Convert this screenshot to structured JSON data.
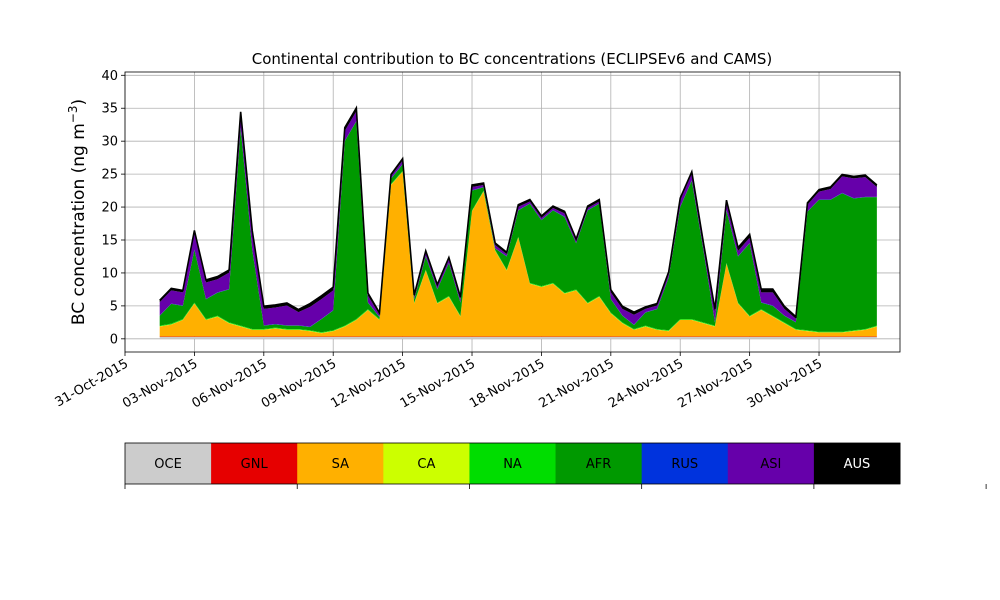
{
  "chart_data": {
    "type": "area",
    "title": "Continental contribution to BC concentrations (ECLIPSEv6 and CAMS)",
    "ylabel_text": "BC concentration (ng m",
    "ylabel_sup": "−3",
    "ylabel_close": ")",
    "xlabel": "",
    "x_start": "2015-11-01T12:00",
    "x_step_hours": 12,
    "xlim": [
      "2015-10-31T00:00",
      "2015-12-03T12:00"
    ],
    "ylim": [
      -2,
      40.5
    ],
    "yticks": [
      0,
      5,
      10,
      15,
      20,
      25,
      30,
      35,
      40
    ],
    "xticks": [
      "31-Oct-2015",
      "03-Nov-2015",
      "06-Nov-2015",
      "09-Nov-2015",
      "12-Nov-2015",
      "15-Nov-2015",
      "18-Nov-2015",
      "21-Nov-2015",
      "24-Nov-2015",
      "27-Nov-2015",
      "30-Nov-2015"
    ],
    "xtick_dates": [
      "2015-10-31",
      "2015-11-03",
      "2015-11-06",
      "2015-11-09",
      "2015-11-12",
      "2015-11-15",
      "2015-11-18",
      "2015-11-21",
      "2015-11-24",
      "2015-11-27",
      "2015-11-30"
    ],
    "grid": true,
    "stacked": true,
    "legend_position": "below-plot (colorbar)",
    "series": [
      {
        "name": "OCE",
        "color": "#cccccc",
        "values": [
          0.3,
          0.3,
          0.3,
          0.3,
          0.3,
          0.3,
          0.3,
          0.3,
          0.3,
          0.3,
          0.3,
          0.3,
          0.3,
          0.3,
          0.3,
          0.3,
          0.3,
          0.3,
          0.3,
          0.3,
          0.3,
          0.3,
          0.3,
          0.3,
          0.3,
          0.3,
          0.3,
          0.3,
          0.3,
          0.3,
          0.3,
          0.3,
          0.3,
          0.3,
          0.3,
          0.3,
          0.3,
          0.3,
          0.3,
          0.3,
          0.3,
          0.3,
          0.3,
          0.3,
          0.3,
          0.3,
          0.3,
          0.3,
          0.3,
          0.3,
          0.3,
          0.3,
          0.3,
          0.3,
          0.3,
          0.3,
          0.3,
          0.3,
          0.3,
          0.3,
          0.3,
          0.3,
          0.3
        ]
      },
      {
        "name": "GNL",
        "color": "#e60000",
        "values": [
          0.05,
          0.05,
          0.05,
          0.05,
          0.05,
          0.05,
          0.05,
          0.05,
          0.05,
          0.05,
          0.05,
          0.05,
          0.05,
          0.05,
          0.05,
          0.05,
          0.05,
          0.05,
          0.05,
          0.05,
          0.05,
          0.05,
          0.05,
          0.05,
          0.05,
          0.05,
          0.05,
          0.05,
          0.05,
          0.05,
          0.05,
          0.05,
          0.05,
          0.05,
          0.05,
          0.05,
          0.05,
          0.05,
          0.05,
          0.05,
          0.05,
          0.05,
          0.05,
          0.05,
          0.05,
          0.05,
          0.05,
          0.05,
          0.05,
          0.05,
          0.05,
          0.05,
          0.05,
          0.05,
          0.05,
          0.05,
          0.05,
          0.05,
          0.05,
          0.05,
          0.05,
          0.05,
          0.05
        ]
      },
      {
        "name": "SA",
        "color": "#ffb000",
        "values": [
          1.5,
          1.8,
          2.5,
          5.0,
          2.5,
          3.0,
          2.0,
          1.5,
          1.0,
          1.0,
          1.2,
          1.0,
          1.0,
          0.8,
          0.5,
          0.8,
          1.5,
          2.5,
          4.0,
          2.5,
          23.0,
          25.0,
          5.0,
          10.0,
          5.0,
          6.0,
          3.0,
          19.0,
          22.0,
          13.0,
          10.0,
          15.0,
          8.0,
          7.5,
          8.0,
          6.5,
          7.0,
          5.0,
          6.0,
          3.5,
          2.0,
          1.0,
          1.5,
          1.0,
          0.8,
          2.5,
          2.5,
          2.0,
          1.5,
          11.0,
          5.0,
          3.0,
          4.0,
          3.0,
          2.0,
          1.0,
          0.8,
          0.6,
          0.6,
          0.6,
          0.8,
          1.0,
          1.5
        ]
      },
      {
        "name": "CA",
        "color": "#ccff00",
        "values": [
          0.05,
          0.05,
          0.05,
          0.05,
          0.05,
          0.05,
          0.05,
          0.05,
          0.05,
          0.05,
          0.05,
          0.05,
          0.05,
          0.05,
          0.05,
          0.05,
          0.05,
          0.05,
          0.05,
          0.05,
          0.05,
          0.05,
          0.05,
          0.05,
          0.05,
          0.05,
          0.05,
          0.05,
          0.05,
          0.05,
          0.05,
          0.05,
          0.05,
          0.05,
          0.05,
          0.05,
          0.05,
          0.05,
          0.05,
          0.05,
          0.05,
          0.05,
          0.05,
          0.05,
          0.05,
          0.05,
          0.05,
          0.05,
          0.05,
          0.05,
          0.05,
          0.05,
          0.05,
          0.05,
          0.05,
          0.05,
          0.05,
          0.05,
          0.05,
          0.05,
          0.05,
          0.05,
          0.05
        ]
      },
      {
        "name": "NA",
        "color": "#00dd00",
        "values": [
          0.1,
          0.1,
          0.1,
          0.1,
          0.1,
          0.1,
          0.1,
          0.1,
          0.1,
          0.1,
          0.1,
          0.1,
          0.1,
          0.1,
          0.1,
          0.1,
          0.1,
          0.1,
          0.1,
          0.1,
          0.1,
          0.1,
          0.1,
          0.1,
          0.1,
          0.1,
          0.1,
          0.1,
          0.1,
          0.1,
          0.1,
          0.1,
          0.1,
          0.1,
          0.1,
          0.1,
          0.1,
          0.1,
          0.1,
          0.1,
          0.1,
          0.1,
          0.1,
          0.1,
          0.1,
          0.1,
          0.1,
          0.1,
          0.1,
          0.1,
          0.1,
          0.1,
          0.1,
          0.1,
          0.1,
          0.1,
          0.1,
          0.1,
          0.1,
          0.1,
          0.1,
          0.1,
          0.1
        ]
      },
      {
        "name": "AFR",
        "color": "#009900",
        "values": [
          1.5,
          3.0,
          2.0,
          8.0,
          3.0,
          3.5,
          5.0,
          30.0,
          12.0,
          0.5,
          0.5,
          0.5,
          0.5,
          0.5,
          2.0,
          3.0,
          28.0,
          30.0,
          1.0,
          0.3,
          0.8,
          1.0,
          0.5,
          2.0,
          2.0,
          5.0,
          2.0,
          3.0,
          0.5,
          0.2,
          2.0,
          4.0,
          12.0,
          10.0,
          11.0,
          11.5,
          7.0,
          14.0,
          14.0,
          2.0,
          1.0,
          0.6,
          2.0,
          3.0,
          8.0,
          17.0,
          21.0,
          11.0,
          0.5,
          8.0,
          7.0,
          11.0,
          1.0,
          1.5,
          1.0,
          1.0,
          18.0,
          20.0,
          20.0,
          21.0,
          20.0,
          20.0,
          19.5
        ]
      },
      {
        "name": "RUS",
        "color": "#0033dd",
        "values": [
          0.05,
          0.05,
          0.05,
          0.05,
          0.05,
          0.05,
          0.05,
          0.05,
          0.05,
          0.05,
          0.05,
          0.05,
          0.05,
          0.05,
          0.05,
          0.05,
          0.05,
          0.05,
          0.05,
          0.05,
          0.05,
          0.05,
          0.05,
          0.05,
          0.05,
          0.05,
          0.05,
          0.05,
          0.05,
          0.05,
          0.05,
          0.05,
          0.05,
          0.05,
          0.05,
          0.05,
          0.05,
          0.05,
          0.05,
          0.05,
          0.05,
          0.05,
          0.05,
          0.05,
          0.05,
          0.05,
          0.05,
          0.05,
          0.05,
          0.05,
          0.05,
          0.05,
          0.05,
          0.05,
          0.05,
          0.05,
          0.05,
          0.05,
          0.05,
          0.05,
          0.05,
          0.05,
          0.05
        ]
      },
      {
        "name": "ASI",
        "color": "#6600aa",
        "values": [
          2.0,
          2.0,
          2.0,
          2.5,
          2.5,
          2.0,
          2.5,
          2.0,
          2.5,
          2.5,
          2.5,
          3.0,
          2.0,
          3.0,
          3.0,
          3.0,
          1.5,
          1.5,
          1.0,
          0.3,
          0.3,
          0.5,
          0.3,
          0.5,
          0.4,
          0.5,
          0.5,
          0.5,
          0.3,
          0.5,
          0.3,
          0.5,
          0.3,
          0.3,
          0.3,
          0.5,
          0.3,
          0.3,
          0.3,
          1.0,
          1.0,
          1.5,
          0.5,
          0.5,
          0.5,
          1.0,
          1.0,
          0.8,
          1.5,
          1.0,
          0.8,
          0.8,
          1.5,
          2.0,
          1.0,
          0.5,
          1.0,
          1.2,
          1.6,
          2.5,
          3.0,
          3.0,
          1.5
        ]
      },
      {
        "name": "AUS",
        "color": "#000000",
        "values": [
          0.3,
          0.3,
          0.3,
          0.4,
          0.4,
          0.4,
          0.4,
          0.4,
          0.4,
          0.4,
          0.4,
          0.4,
          0.4,
          0.5,
          0.5,
          0.5,
          0.5,
          0.5,
          0.4,
          0.3,
          0.3,
          0.3,
          0.3,
          0.3,
          0.3,
          0.3,
          0.3,
          0.3,
          0.3,
          0.3,
          0.3,
          0.3,
          0.3,
          0.3,
          0.3,
          0.3,
          0.3,
          0.3,
          0.3,
          0.4,
          0.4,
          0.4,
          0.3,
          0.3,
          0.3,
          0.3,
          0.3,
          0.3,
          0.5,
          0.5,
          0.5,
          0.5,
          0.5,
          0.5,
          0.4,
          0.3,
          0.3,
          0.3,
          0.3,
          0.3,
          0.3,
          0.3,
          0.3
        ]
      }
    ]
  }
}
